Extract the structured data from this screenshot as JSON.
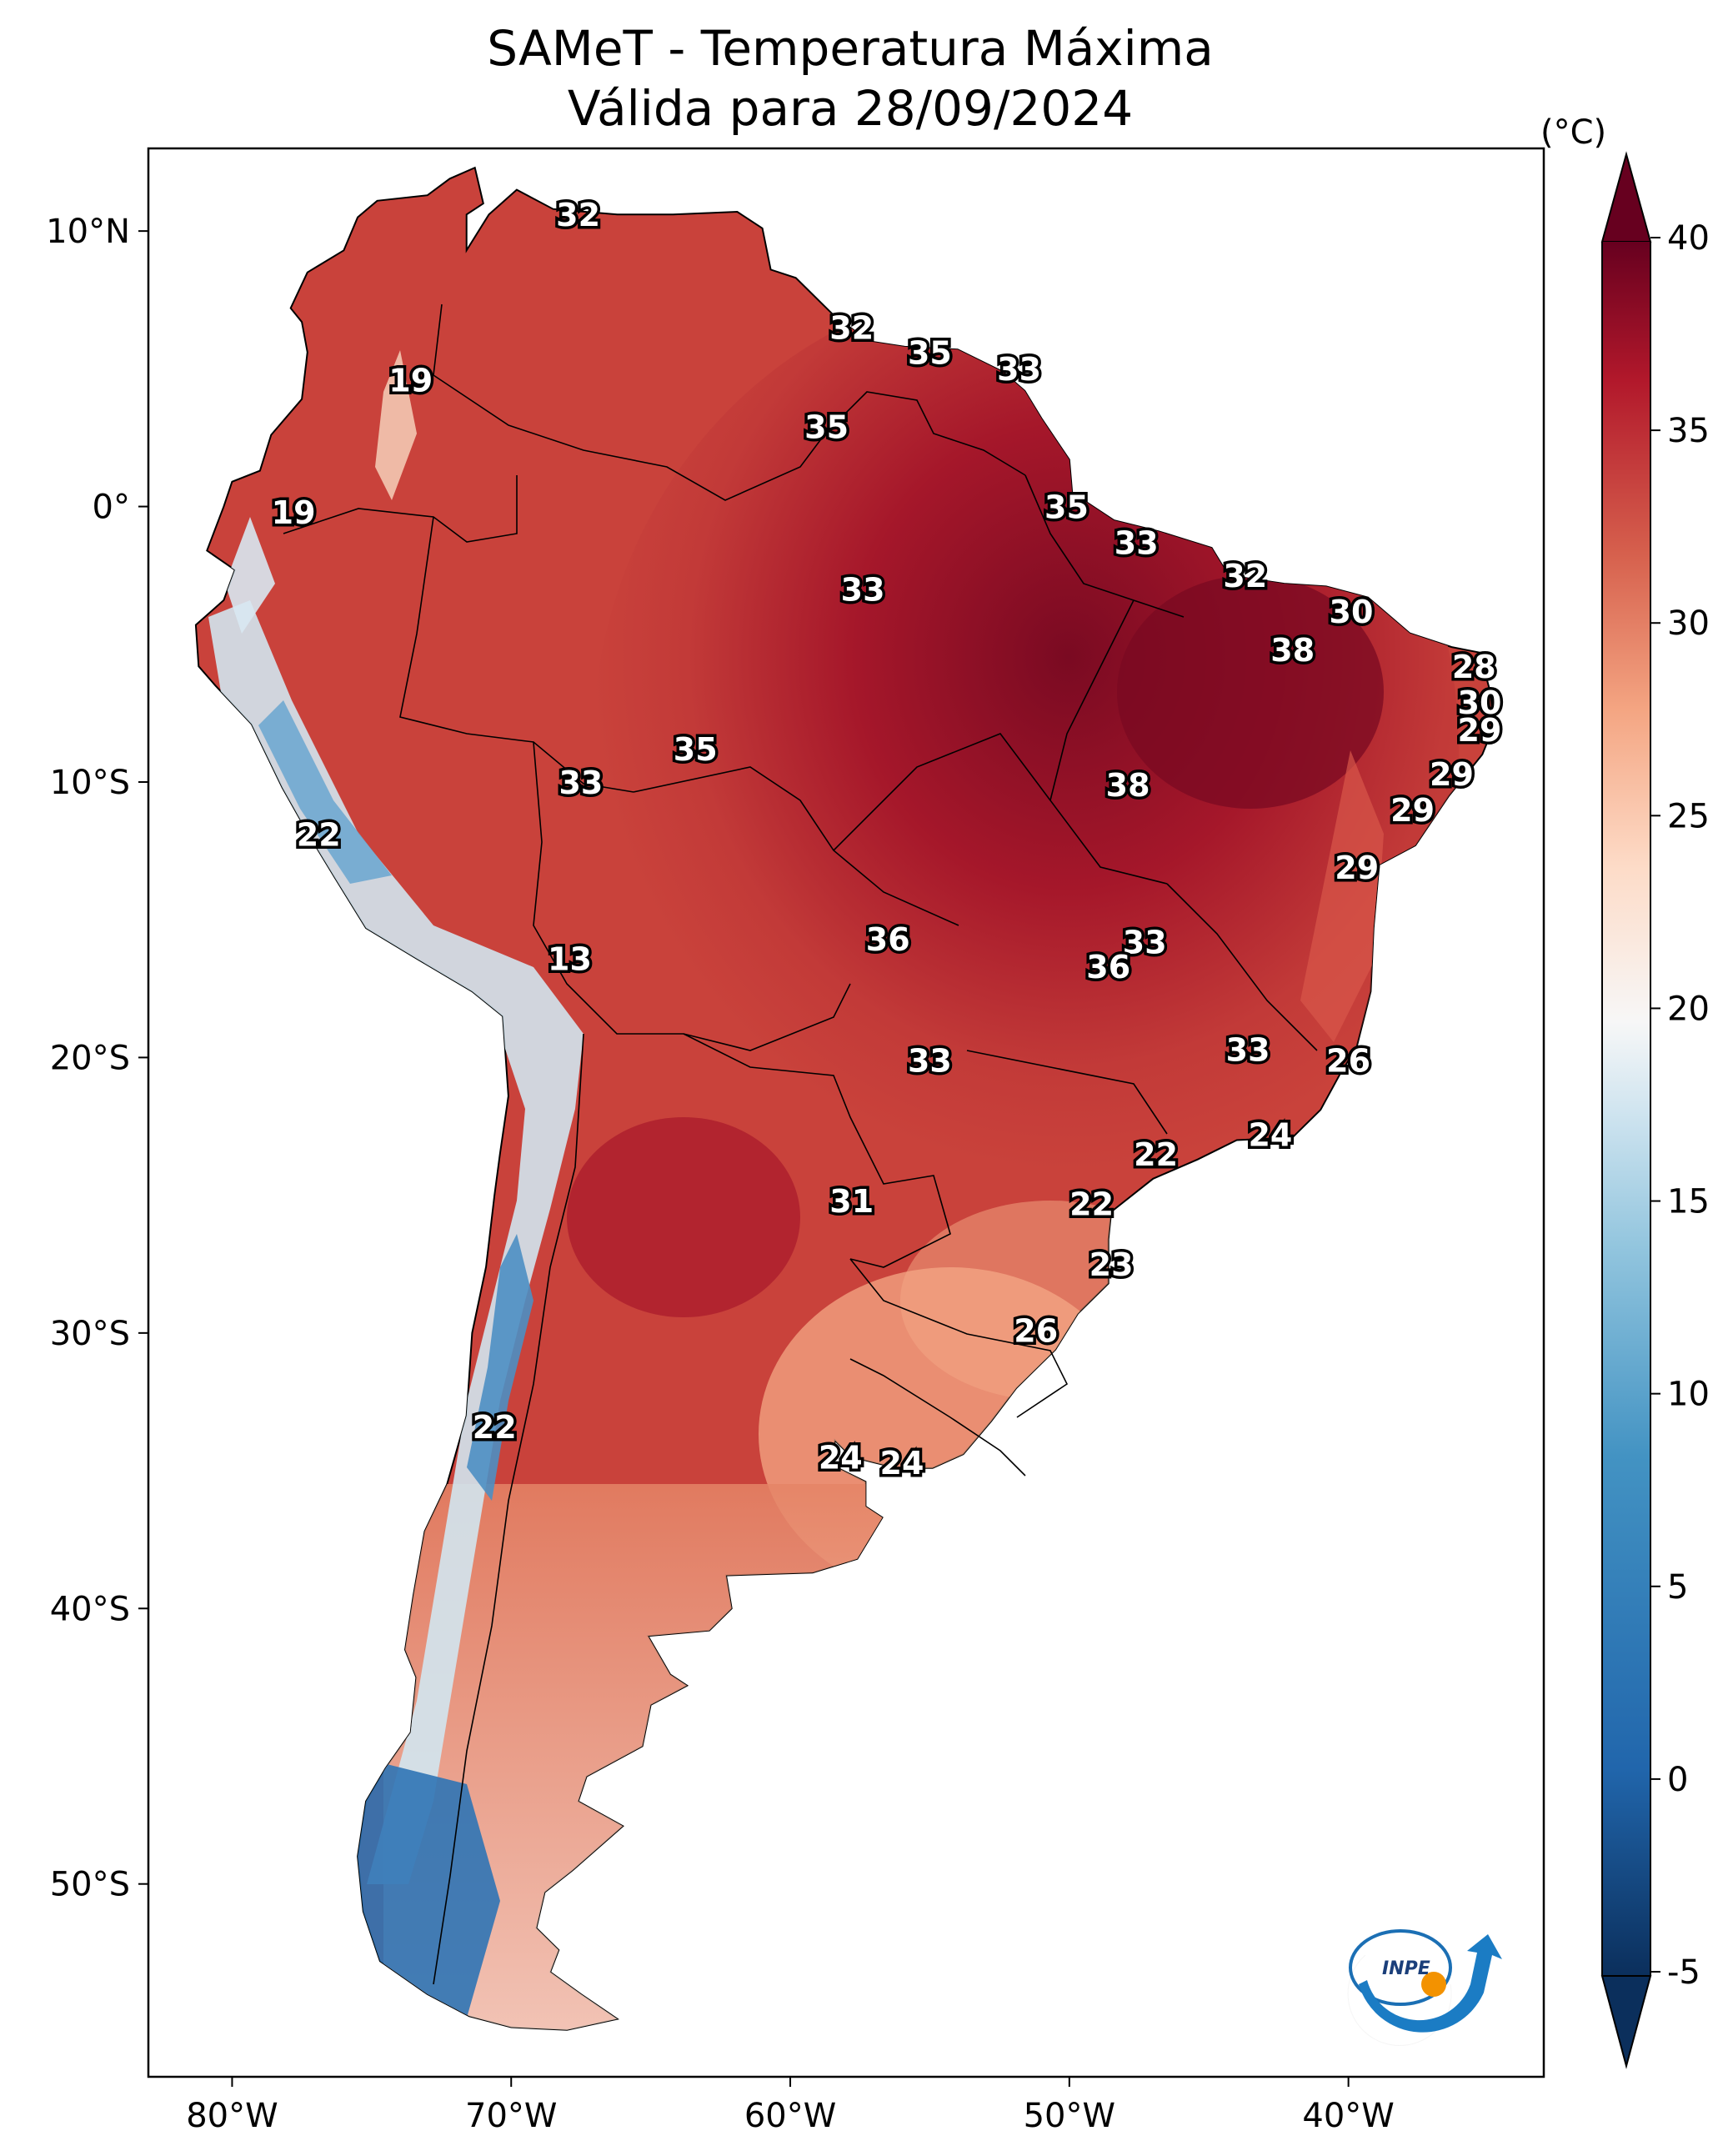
{
  "title": {
    "line1": "SAMeT - Temperatura Máxima",
    "line2": "Válida para 28/09/2024"
  },
  "map": {
    "lon_ticks": [
      "80°W",
      "70°W",
      "60°W",
      "50°W",
      "40°W"
    ],
    "lat_ticks": [
      "10°N",
      "0°",
      "10°S",
      "20°S",
      "30°S",
      "40°S",
      "50°S"
    ],
    "extent": {
      "lon": [
        -83,
        -33
      ],
      "lat": [
        -57,
        13
      ]
    }
  },
  "colorbar": {
    "unit": "(°C)",
    "ticks": [
      "40",
      "35",
      "30",
      "25",
      "20",
      "15",
      "10",
      "5",
      "0",
      "-5"
    ],
    "range": [
      -5,
      40
    ],
    "colors": {
      "cold_extreme": "#0b2f5c",
      "cold": "#2166ac",
      "cool": "#92c5de",
      "neutral": "#f7f7f7",
      "warm": "#f4a582",
      "hot": "#d6604d",
      "very_hot": "#b2182b",
      "hot_extreme": "#67001f"
    }
  },
  "chart_data": {
    "type": "heatmap",
    "title": "SAMeT - Temperatura Máxima Válida para 28/09/2024",
    "xlabel": "",
    "ylabel": "",
    "unit": "°C",
    "xlim": [
      -83,
      -33
    ],
    "ylim": [
      -57,
      13
    ],
    "labels": [
      {
        "lon": -67.6,
        "lat": 10.5,
        "value": "32"
      },
      {
        "lon": -57.8,
        "lat": 6.4,
        "value": "32"
      },
      {
        "lon": -55.0,
        "lat": 5.5,
        "value": "35"
      },
      {
        "lon": -51.8,
        "lat": 4.9,
        "value": "33"
      },
      {
        "lon": -73.6,
        "lat": 4.5,
        "value": "19"
      },
      {
        "lon": -58.7,
        "lat": 2.8,
        "value": "35"
      },
      {
        "lon": -77.8,
        "lat": -0.3,
        "value": "19"
      },
      {
        "lon": -50.1,
        "lat": -0.1,
        "value": "35"
      },
      {
        "lon": -47.6,
        "lat": -1.4,
        "value": "33"
      },
      {
        "lon": -57.4,
        "lat": -3.1,
        "value": "33"
      },
      {
        "lon": -39.9,
        "lat": -3.9,
        "value": "30"
      },
      {
        "lon": -43.7,
        "lat": -2.6,
        "value": "32"
      },
      {
        "lon": -42.0,
        "lat": -5.3,
        "value": "38"
      },
      {
        "lon": -35.5,
        "lat": -5.9,
        "value": "28"
      },
      {
        "lon": -35.3,
        "lat": -7.2,
        "value": "30"
      },
      {
        "lon": -35.3,
        "lat": -8.2,
        "value": "29"
      },
      {
        "lon": -63.4,
        "lat": -8.9,
        "value": "35"
      },
      {
        "lon": -67.5,
        "lat": -10.1,
        "value": "33"
      },
      {
        "lon": -47.9,
        "lat": -10.2,
        "value": "38"
      },
      {
        "lon": -36.3,
        "lat": -9.8,
        "value": "29"
      },
      {
        "lon": -37.7,
        "lat": -11.1,
        "value": "29"
      },
      {
        "lon": -39.7,
        "lat": -13.2,
        "value": "29"
      },
      {
        "lon": -76.9,
        "lat": -12.0,
        "value": "22"
      },
      {
        "lon": -56.5,
        "lat": -15.8,
        "value": "36"
      },
      {
        "lon": -47.3,
        "lat": -15.9,
        "value": "33"
      },
      {
        "lon": -48.6,
        "lat": -16.8,
        "value": "36"
      },
      {
        "lon": -67.9,
        "lat": -16.5,
        "value": "13"
      },
      {
        "lon": -55.0,
        "lat": -20.2,
        "value": "33"
      },
      {
        "lon": -43.6,
        "lat": -19.8,
        "value": "33"
      },
      {
        "lon": -40.0,
        "lat": -20.2,
        "value": "26"
      },
      {
        "lon": -46.9,
        "lat": -23.6,
        "value": "22"
      },
      {
        "lon": -42.8,
        "lat": -22.9,
        "value": "24"
      },
      {
        "lon": -49.2,
        "lat": -25.4,
        "value": "22"
      },
      {
        "lon": -57.8,
        "lat": -25.3,
        "value": "31"
      },
      {
        "lon": -48.5,
        "lat": -27.6,
        "value": "23"
      },
      {
        "lon": -51.2,
        "lat": -30.0,
        "value": "26"
      },
      {
        "lon": -70.6,
        "lat": -33.5,
        "value": "22"
      },
      {
        "lon": -58.2,
        "lat": -34.6,
        "value": "24"
      },
      {
        "lon": -56.0,
        "lat": -34.8,
        "value": "24"
      }
    ]
  }
}
